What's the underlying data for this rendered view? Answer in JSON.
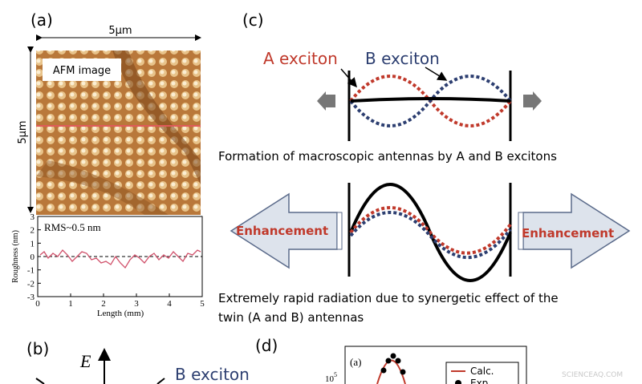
{
  "panel_a": {
    "label": "(a)",
    "width_label": "5μm",
    "height_label": "5μm",
    "image_label": "AFM image",
    "plot": {
      "annotation": "RMS~0.5 nm",
      "y_label": "Roughness (nm)",
      "x_label": "Length (mm)",
      "yticks": [
        "3",
        "2",
        "1",
        "0",
        "-1",
        "-2",
        "-3"
      ],
      "xticks": [
        "0",
        "1",
        "2",
        "3",
        "4",
        "5"
      ]
    }
  },
  "panel_b": {
    "label": "(b)",
    "axis_label": "E",
    "b_exciton": "B exciton"
  },
  "panel_c": {
    "label": "(c)",
    "a_exciton": "A exciton",
    "b_exciton": "B exciton",
    "caption_1": "Formation of macroscopic antennas by A and B excitons",
    "enhancement_left": "Enhancement",
    "enhancement_right": "Enhancement",
    "caption_2_line_1": "Extremely rapid radiation due to synergetic effect of the",
    "caption_2_line_2": "twin (A and B) antennas"
  },
  "panel_d": {
    "label": "(d)",
    "inner_label": "(a)",
    "y_tick": "10",
    "y_tick_exp": "5",
    "legend_1": "Calc.",
    "legend_2": "Exp."
  },
  "watermark": "SCIENCEAQ.COM"
}
